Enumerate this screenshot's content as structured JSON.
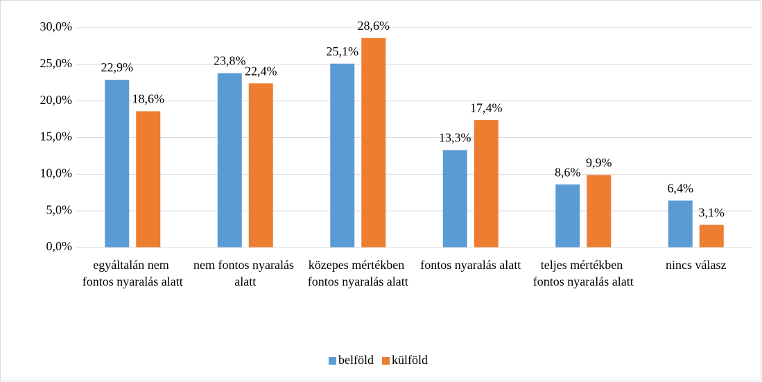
{
  "chart_data": {
    "type": "bar",
    "categories": [
      "egyáltalán nem fontos nyaralás alatt",
      "nem fontos nyaralás alatt",
      "közepes mértékben fontos nyaralás alatt",
      "fontos nyaralás alatt",
      "teljes mértékben fontos nyaralás alatt",
      "nincs válasz"
    ],
    "series": [
      {
        "name": "belföld",
        "color": "#5b9bd5",
        "values": [
          22.9,
          23.8,
          25.1,
          13.3,
          8.6,
          6.4
        ],
        "value_labels": [
          "22,9%",
          "23,8%",
          "25,1%",
          "13,3%",
          "8,6%",
          "6,4%"
        ]
      },
      {
        "name": "külföld",
        "color": "#ed7d31",
        "values": [
          18.6,
          22.4,
          28.6,
          17.4,
          9.9,
          3.1
        ],
        "value_labels": [
          "18,6%",
          "22,4%",
          "28,6%",
          "17,4%",
          "9,9%",
          "3,1%"
        ]
      }
    ],
    "ylim": [
      0,
      30
    ],
    "yticks": [
      {
        "value": 0,
        "label": "0,0%"
      },
      {
        "value": 5,
        "label": "5,0%"
      },
      {
        "value": 10,
        "label": "10,0%"
      },
      {
        "value": 15,
        "label": "15,0%"
      },
      {
        "value": 20,
        "label": "20,0%"
      },
      {
        "value": 25,
        "label": "25,0%"
      },
      {
        "value": 30,
        "label": "30,0%"
      }
    ],
    "grid": true,
    "legend": "bottom"
  }
}
